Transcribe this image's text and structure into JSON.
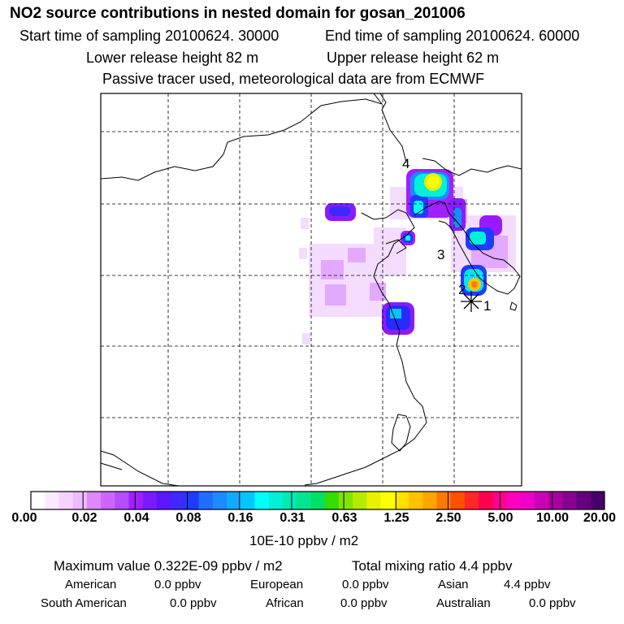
{
  "header": {
    "title": "NO2 source contributions in nested domain for gosan_201006",
    "start_time": "Start time of sampling 20100624. 30000",
    "end_time": "End time of sampling 20100624. 60000",
    "lower_release": "Lower release height   82 m",
    "upper_release": "Upper release height   62 m",
    "tracer_note": "Passive tracer used, meteorological data are from ECMWF"
  },
  "map": {
    "labels": [
      {
        "text": "4",
        "name": "source-label-4"
      },
      {
        "text": "3",
        "name": "source-label-3"
      },
      {
        "text": "2",
        "name": "source-label-2"
      },
      {
        "text": "1",
        "name": "source-label-1"
      }
    ],
    "receptor_marker": "asterisk-icon"
  },
  "colorbar": {
    "colors": [
      "#ffffff",
      "#fbe9ff",
      "#f6d2ff",
      "#efbaff",
      "#dd88ff",
      "#cc66ff",
      "#b74cff",
      "#a020ff",
      "#7a1aff",
      "#5b16ff",
      "#3c2aff",
      "#1e3cff",
      "#1f6eff",
      "#1a8cff",
      "#10aaff",
      "#00c8ff",
      "#00ffff",
      "#00f0d8",
      "#00eab4",
      "#00e690",
      "#00e066",
      "#33dd00",
      "#7fe400",
      "#b4ec00",
      "#e6f200",
      "#ffff00",
      "#ffe000",
      "#ffc400",
      "#ffa500",
      "#ff7a00",
      "#ff5000",
      "#ff2828",
      "#ff0050",
      "#ff0090",
      "#ff00c0",
      "#ee00c8",
      "#cc00b4",
      "#aa00a0",
      "#880090",
      "#660080",
      "#4a006a"
    ],
    "ticks": [
      "0.00",
      "0.02",
      "0.04",
      "0.08",
      "0.16",
      "0.31",
      "0.63",
      "1.25",
      "2.50",
      "5.00",
      "10.00",
      "20.00"
    ],
    "unit_label": "10E-10 ppbv / m2"
  },
  "footer": {
    "max_value": "Maximum value  0.322E-09 ppbv / m2",
    "total_mixing": "Total mixing ratio       4.4 ppbv",
    "regions": [
      {
        "name": "American",
        "value": "0.0 ppbv"
      },
      {
        "name": "European",
        "value": "0.0 ppbv"
      },
      {
        "name": "Asian",
        "value": "4.4 ppbv"
      },
      {
        "name": "South American",
        "value": "0.0 ppbv"
      },
      {
        "name": "African",
        "value": "0.0 ppbv"
      },
      {
        "name": "Australian",
        "value": "0.0 ppbv"
      }
    ]
  }
}
